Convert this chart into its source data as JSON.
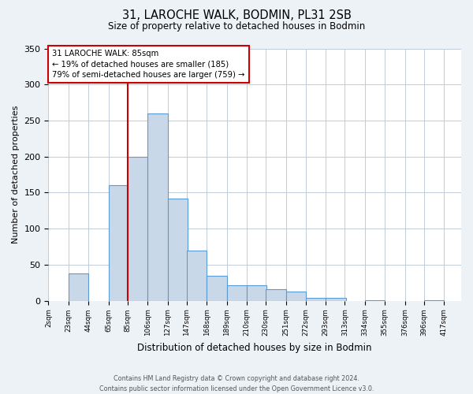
{
  "title_line1": "31, LAROCHE WALK, BODMIN, PL31 2SB",
  "title_line2": "Size of property relative to detached houses in Bodmin",
  "xlabel": "Distribution of detached houses by size in Bodmin",
  "ylabel": "Number of detached properties",
  "footer_line1": "Contains HM Land Registry data © Crown copyright and database right 2024.",
  "footer_line2": "Contains public sector information licensed under the Open Government Licence v3.0.",
  "bar_left_edges": [
    2,
    23,
    44,
    65,
    85,
    106,
    127,
    147,
    168,
    189,
    210,
    230,
    251,
    272,
    293,
    313,
    334,
    355,
    376,
    396
  ],
  "bar_heights": [
    0,
    38,
    0,
    160,
    200,
    260,
    142,
    70,
    34,
    21,
    21,
    16,
    13,
    4,
    4,
    0,
    1,
    0,
    0,
    1
  ],
  "bar_widths": [
    21,
    21,
    21,
    21,
    21,
    21,
    21,
    21,
    21,
    21,
    21,
    21,
    21,
    21,
    21,
    21,
    21,
    21,
    21,
    21
  ],
  "tick_labels": [
    "2sqm",
    "23sqm",
    "44sqm",
    "65sqm",
    "85sqm",
    "106sqm",
    "127sqm",
    "147sqm",
    "168sqm",
    "189sqm",
    "210sqm",
    "230sqm",
    "251sqm",
    "272sqm",
    "293sqm",
    "313sqm",
    "334sqm",
    "355sqm",
    "376sqm",
    "396sqm",
    "417sqm"
  ],
  "tick_positions": [
    2,
    23,
    44,
    65,
    85,
    106,
    127,
    147,
    168,
    189,
    210,
    230,
    251,
    272,
    293,
    313,
    334,
    355,
    376,
    396,
    417
  ],
  "ylim": [
    0,
    350
  ],
  "yticks": [
    0,
    50,
    100,
    150,
    200,
    250,
    300,
    350
  ],
  "bar_color": "#c8d8e8",
  "bar_edge_color": "#5b9bd5",
  "vline_x": 85,
  "vline_color": "#cc0000",
  "annotation_text": "31 LAROCHE WALK: 85sqm\n← 19% of detached houses are smaller (185)\n79% of semi-detached houses are larger (759) →",
  "annotation_box_color": "#cc0000",
  "background_color": "#edf2f7",
  "plot_background": "#ffffff"
}
